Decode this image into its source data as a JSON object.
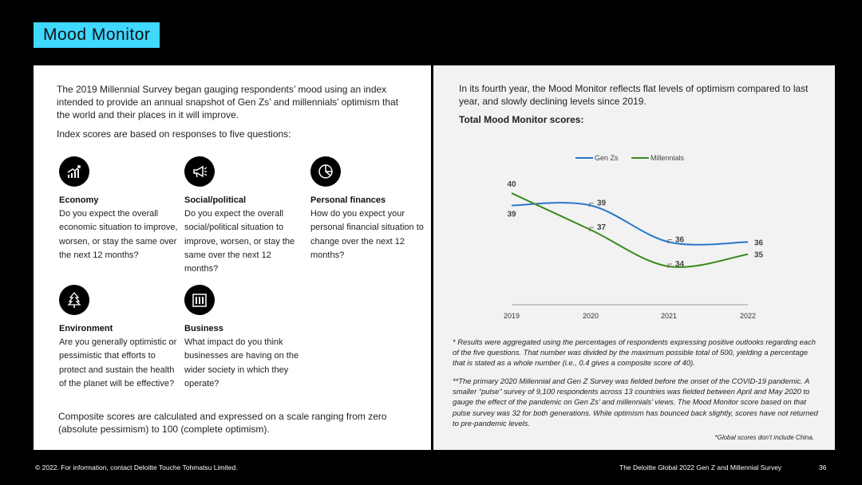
{
  "title": "Mood Monitor",
  "left": {
    "intro": "The 2019 Millennial Survey began gauging respondents’ mood using an index intended to provide an annual snapshot of Gen Zs’ and millennials’ optimism that the world and their places in it will improve.",
    "subintro": "Index scores are based on responses to five questions:",
    "questions": [
      {
        "title": "Economy",
        "text": "Do you expect the overall economic situation to improve, worsen, or stay the same over the next 12 months?",
        "icon": "chart-growth-icon"
      },
      {
        "title": "Social/political",
        "text": "Do you expect the overall social/political situation to improve, worsen, or stay the same over the next 12 months?",
        "icon": "megaphone-icon"
      },
      {
        "title": "Personal  finances",
        "text": "How do you expect your personal financial situation to change over the next 12 months?",
        "icon": "pie-chart-icon"
      },
      {
        "title": "Environment",
        "text": "Are you generally optimistic or pessimistic that efforts to protect and sustain the health of the planet will be effective?",
        "icon": "tree-icon"
      },
      {
        "title": "Business",
        "text": "What impact do you think businesses are having on the wider society in which they operate?",
        "icon": "building-icon"
      }
    ],
    "composite": "Composite scores are calculated and expressed on a scale ranging from zero (absolute pessimism) to 100 (complete optimism)."
  },
  "right": {
    "intro": "In its fourth year, the Mood Monitor reflects flat levels of optimism compared to last year, and slowly declining levels since 2019.",
    "subtitle": "Total Mood Monitor scores:",
    "note1": "* Results were aggregated using the percentages of respondents expressing positive outlooks regarding each of the five questions. That number was divided by the maximum possible total of 500, yielding a percentage that is stated as a whole number (i.e., 0.4 gives a composite score of 40).",
    "note2": "**The primary 2020 Millennial and Gen Z Survey was fielded before the onset of the COVID-19 pandemic. A smaller “pulse” survey of 9,100 respondents across 13 countries was fielded between April and May 2020 to gauge the effect of the pandemic on Gen Zs’ and millennials’ views. The Mood Monitor score based on that pulse survey was 32 for both generations. While optimism has bounced back slightly, scores have not returned to pre-pandemic levels.",
    "note3": "*Global scores don’t include China."
  },
  "footer": {
    "copyright": "© 2022. For information, contact Deloitte Touche Tohmatsu Limited.",
    "survey": "The Deloitte Global 2022 Gen Z and Millennial Survey",
    "page": "36"
  },
  "chart_data": {
    "type": "line",
    "x": [
      "2019",
      "2020",
      "2021",
      "2022"
    ],
    "series": [
      {
        "name": "Gen Zs",
        "values": [
          39,
          39,
          36,
          36
        ],
        "color": "#2878c8"
      },
      {
        "name": "Millennials",
        "values": [
          40,
          37,
          34,
          35
        ],
        "color": "#3a8a1e"
      }
    ],
    "legend": "top-center",
    "grid": false
  }
}
